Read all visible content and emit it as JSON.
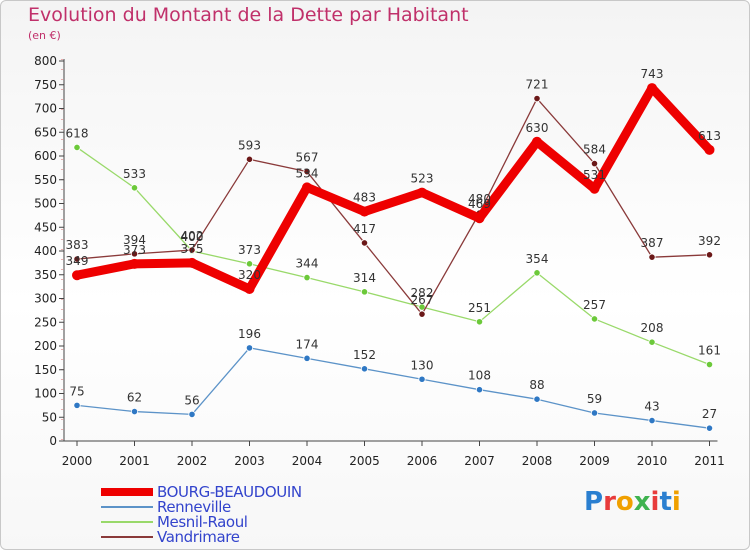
{
  "chart_data": {
    "type": "line",
    "title": "Evolution du Montant de la Dette par Habitant",
    "unit_label": "(en €)",
    "categories": [
      "2000",
      "2001",
      "2002",
      "2003",
      "2004",
      "2005",
      "2006",
      "2007",
      "2008",
      "2009",
      "2010",
      "2011"
    ],
    "ylim": [
      0,
      800
    ],
    "yticks": [
      0,
      50,
      100,
      150,
      200,
      250,
      300,
      350,
      400,
      450,
      500,
      550,
      600,
      650,
      700,
      750,
      800
    ],
    "grid": false,
    "legend_position": "bottom-left",
    "series": [
      {
        "name": "Renneville",
        "color": "#5c93c8",
        "point_color": "#2f78c4",
        "values": [
          75,
          62,
          56,
          196,
          174,
          152,
          130,
          108,
          88,
          59,
          43,
          27
        ]
      },
      {
        "name": "Mesnil-Raoul",
        "color": "#99d96a",
        "point_color": "#6cc93a",
        "values": [
          618,
          533,
          400,
          373,
          344,
          314,
          282,
          251,
          354,
          257,
          208,
          161
        ]
      },
      {
        "name": "Vandrimare",
        "color": "#8a3a3a",
        "point_color": "#6b1818",
        "values": [
          383,
          394,
          402,
          593,
          567,
          417,
          267,
          480,
          721,
          584,
          387,
          392
        ]
      },
      {
        "name": "BOURG-BEAUDOUIN",
        "color": "#ee0000",
        "point_color": "#ee0000",
        "values": [
          349,
          373,
          375,
          320,
          534,
          483,
          523,
          469,
          630,
          531,
          743,
          613
        ]
      }
    ],
    "legend_order": [
      "BOURG-BEAUDOUIN",
      "Renneville",
      "Mesnil-Raoul",
      "Vandrimare"
    ],
    "data_labels": [
      {
        "series": "Renneville",
        "values": [
          75,
          62,
          56,
          196,
          174,
          152,
          130,
          108,
          88,
          59,
          43,
          27
        ]
      },
      {
        "series": "Mesnil-Raoul",
        "values": [
          618,
          533,
          400,
          373,
          344,
          314,
          282,
          251,
          354,
          257,
          208,
          161
        ]
      },
      {
        "series": "Vandrimare",
        "values": [
          383,
          394,
          402,
          593,
          567,
          417,
          267,
          480,
          721,
          584,
          387,
          392
        ]
      },
      {
        "series": "BOURG-BEAUDOUIN",
        "values": [
          349,
          373,
          375,
          320,
          534,
          483,
          523,
          469,
          630,
          531,
          743,
          613
        ]
      }
    ]
  },
  "logo": {
    "text": "Proxiti"
  }
}
